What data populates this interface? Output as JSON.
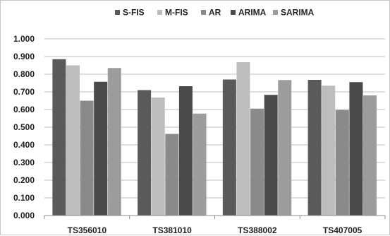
{
  "chart_data": {
    "type": "bar",
    "categories": [
      "TS356010",
      "TS381010",
      "TS388002",
      "TS407005"
    ],
    "series": [
      {
        "name": "S-FIS",
        "color": "#5a5a5a",
        "values": [
          0.885,
          0.71,
          0.77,
          0.768
        ]
      },
      {
        "name": "M-FIS",
        "color": "#bdbdbd",
        "values": [
          0.85,
          0.668,
          0.868,
          0.735
        ]
      },
      {
        "name": "AR",
        "color": "#8a8a8a",
        "values": [
          0.65,
          0.462,
          0.605,
          0.597
        ]
      },
      {
        "name": "ARIMA",
        "color": "#4a4a4a",
        "values": [
          0.757,
          0.732,
          0.683,
          0.755
        ]
      },
      {
        "name": "SARIMA",
        "color": "#9c9c9c",
        "values": [
          0.835,
          0.577,
          0.767,
          0.68
        ]
      }
    ],
    "yticks": [
      "0.000",
      "0.100",
      "0.200",
      "0.300",
      "0.400",
      "0.500",
      "0.600",
      "0.700",
      "0.800",
      "0.900",
      "1.000"
    ],
    "ylim": [
      0,
      1.0
    ],
    "title": "",
    "xlabel": "",
    "ylabel": "",
    "grid": true,
    "legend_position": "top"
  }
}
